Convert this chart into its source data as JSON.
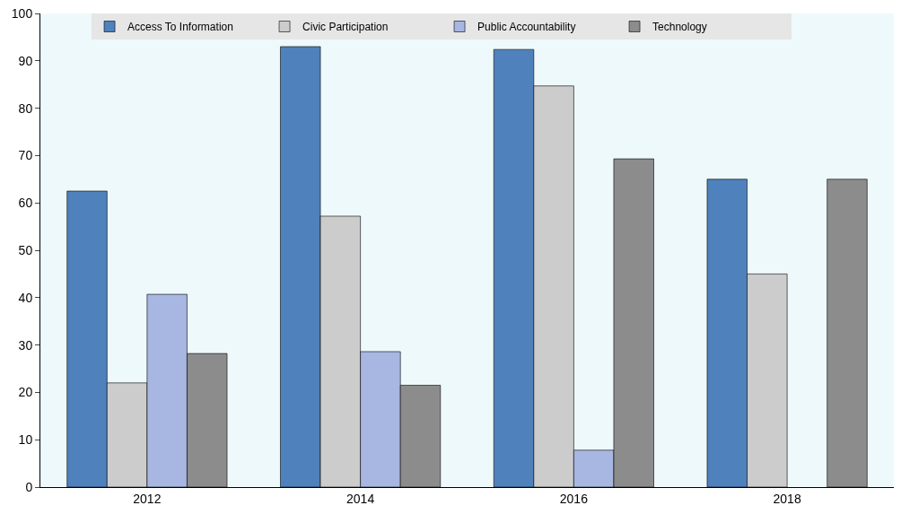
{
  "chart_data": {
    "type": "bar",
    "categories": [
      "2012",
      "2014",
      "2016",
      "2018"
    ],
    "series": [
      {
        "name": "Access To Information",
        "color": "#4f81bd",
        "values": [
          62.5,
          93,
          92.4,
          65
        ]
      },
      {
        "name": "Civic Participation",
        "color": "#cccccc",
        "values": [
          22,
          57.2,
          84.7,
          45
        ]
      },
      {
        "name": "Public Accountability",
        "color": "#a7b7e1",
        "values": [
          40.7,
          28.6,
          7.8,
          null
        ]
      },
      {
        "name": "Technology",
        "color": "#8c8c8c",
        "values": [
          28.2,
          21.5,
          69.3,
          65
        ]
      }
    ],
    "ylim": [
      0,
      100
    ],
    "yticks": [
      0,
      10,
      20,
      30,
      40,
      50,
      60,
      70,
      80,
      90,
      100
    ],
    "grid": false,
    "legend": "top"
  }
}
